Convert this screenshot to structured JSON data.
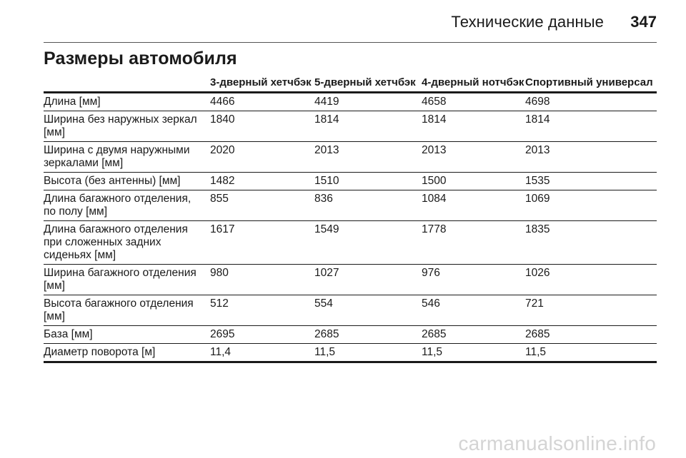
{
  "header": {
    "title": "Технические данные",
    "page_number": "347"
  },
  "section_title": "Размеры автомобиля",
  "table": {
    "columns": [
      "",
      "3-дверный хетчбэк",
      "5-дверный хетчбэк",
      "4-дверный нотчбэк",
      "Спортивный универсал"
    ],
    "rows": [
      {
        "label": "Длина [мм]",
        "values": [
          "4466",
          "4419",
          "4658",
          "4698"
        ]
      },
      {
        "label": "Ширина без наружных зеркал [мм]",
        "values": [
          "1840",
          "1814",
          "1814",
          "1814"
        ]
      },
      {
        "label": "Ширина с двумя наружными зеркалами [мм]",
        "values": [
          "2020",
          "2013",
          "2013",
          "2013"
        ]
      },
      {
        "label": "Высота (без антенны) [мм]",
        "values": [
          "1482",
          "1510",
          "1500",
          "1535"
        ]
      },
      {
        "label": "Длина багажного отделения, по полу [мм]",
        "values": [
          "855",
          "836",
          "1084",
          "1069"
        ]
      },
      {
        "label": "Длина багажного отделения при сложенных задних сиденьях [мм]",
        "values": [
          "1617",
          "1549",
          "1778",
          "1835"
        ]
      },
      {
        "label": "Ширина багажного отделения [мм]",
        "values": [
          "980",
          "1027",
          "976",
          "1026"
        ]
      },
      {
        "label": "Высота багажного отделения [мм]",
        "values": [
          "512",
          "554",
          "546",
          "721"
        ]
      },
      {
        "label": "База [мм]",
        "values": [
          "2695",
          "2685",
          "2685",
          "2685"
        ]
      },
      {
        "label": "Диаметр поворота [м]",
        "values": [
          "11,4",
          "11,5",
          "11,5",
          "11,5"
        ]
      }
    ]
  },
  "watermark": "carmanualsonline.info"
}
